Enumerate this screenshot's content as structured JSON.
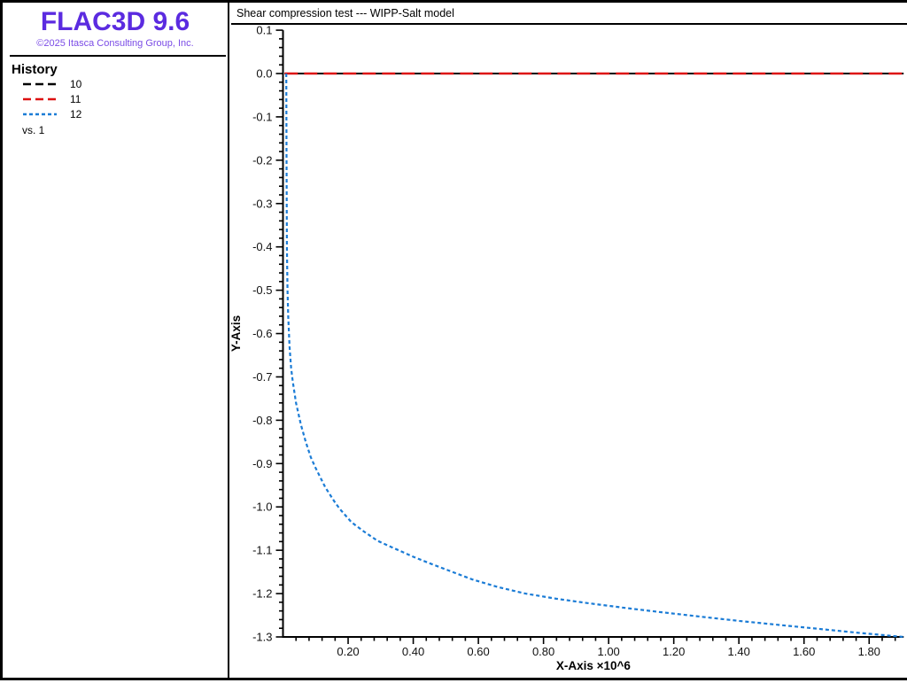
{
  "app": {
    "logo_text": "FLAC3D 9.6",
    "copyright": "©2025 Itasca Consulting Group, Inc.",
    "logo_color": "#5b2be0",
    "copyright_color": "#7a4be6"
  },
  "sidebar": {
    "legend_title": "History",
    "items": [
      {
        "label": "10",
        "color": "#000000",
        "dash": "9 5"
      },
      {
        "label": "11",
        "color": "#dd1111",
        "dash": "9 5"
      },
      {
        "label": "12",
        "color": "#1b7cd6",
        "dash": "4 3"
      }
    ],
    "vs_label": "vs. 1"
  },
  "chart": {
    "title": "Shear compression test --- WIPP-Salt model"
  },
  "chart_data": {
    "type": "line",
    "title": "Shear compression test --- WIPP-Salt model",
    "xlabel": "X-Axis ×10^6",
    "ylabel": "Y-Axis",
    "xlim": [
      0,
      1.906
    ],
    "ylim": [
      -1.3,
      0.1
    ],
    "x_unit_multiplier": "×10^6",
    "grid": false,
    "legend_position": "left-panel",
    "x_ticks_major": [
      0.2,
      0.4,
      0.6,
      0.8,
      1.0,
      1.2,
      1.4,
      1.6,
      1.8
    ],
    "x_tick_labels": [
      "0.20",
      "0.40",
      "0.60",
      "0.80",
      "1.00",
      "1.20",
      "1.40",
      "1.60",
      "1.80"
    ],
    "x_minor_step": 0.04,
    "y_ticks_major": [
      0.1,
      0.0,
      -0.1,
      -0.2,
      -0.3,
      -0.4,
      -0.5,
      -0.6,
      -0.7,
      -0.8,
      -0.9,
      -1.0,
      -1.1,
      -1.2,
      -1.3
    ],
    "y_tick_labels": [
      "0.1",
      "0.0",
      "-0.1",
      "-0.2",
      "-0.3",
      "-0.4",
      "-0.5",
      "-0.6",
      "-0.7",
      "-0.8",
      "-0.9",
      "-1.0",
      "-1.1",
      "-1.2",
      "-1.3"
    ],
    "y_minor_step": 0.02,
    "series": [
      {
        "name": "10",
        "color": "#000000",
        "style": "dashed",
        "dash": "",
        "width": 2,
        "points": [
          [
            0.005,
            0.0
          ],
          [
            1.906,
            0.0
          ]
        ]
      },
      {
        "name": "11",
        "color": "#dd1111",
        "style": "dashed",
        "dash": "15 7",
        "width": 2.4,
        "points": [
          [
            0.005,
            0.0
          ],
          [
            1.906,
            0.0
          ]
        ]
      },
      {
        "name": "12",
        "color": "#1b7cd6",
        "style": "dotted",
        "dash": "4 3",
        "width": 2.2,
        "points": [
          [
            0.01,
            0.0
          ],
          [
            0.011,
            -0.2
          ],
          [
            0.012,
            -0.4
          ],
          [
            0.014,
            -0.5
          ],
          [
            0.016,
            -0.56
          ],
          [
            0.02,
            -0.63
          ],
          [
            0.025,
            -0.68
          ],
          [
            0.03,
            -0.71
          ],
          [
            0.04,
            -0.76
          ],
          [
            0.055,
            -0.81
          ],
          [
            0.07,
            -0.85
          ],
          [
            0.085,
            -0.885
          ],
          [
            0.1,
            -0.91
          ],
          [
            0.13,
            -0.955
          ],
          [
            0.16,
            -0.99
          ],
          [
            0.175,
            -1.005
          ],
          [
            0.21,
            -1.035
          ],
          [
            0.245,
            -1.055
          ],
          [
            0.29,
            -1.078
          ],
          [
            0.34,
            -1.095
          ],
          [
            0.4,
            -1.115
          ],
          [
            0.45,
            -1.13
          ],
          [
            0.52,
            -1.15
          ],
          [
            0.58,
            -1.167
          ],
          [
            0.66,
            -1.185
          ],
          [
            0.745,
            -1.2
          ],
          [
            0.84,
            -1.212
          ],
          [
            0.935,
            -1.222
          ],
          [
            1.05,
            -1.233
          ],
          [
            1.15,
            -1.242
          ],
          [
            1.28,
            -1.253
          ],
          [
            1.4,
            -1.263
          ],
          [
            1.52,
            -1.272
          ],
          [
            1.64,
            -1.281
          ],
          [
            1.76,
            -1.29
          ],
          [
            1.906,
            -1.3
          ]
        ]
      }
    ]
  }
}
